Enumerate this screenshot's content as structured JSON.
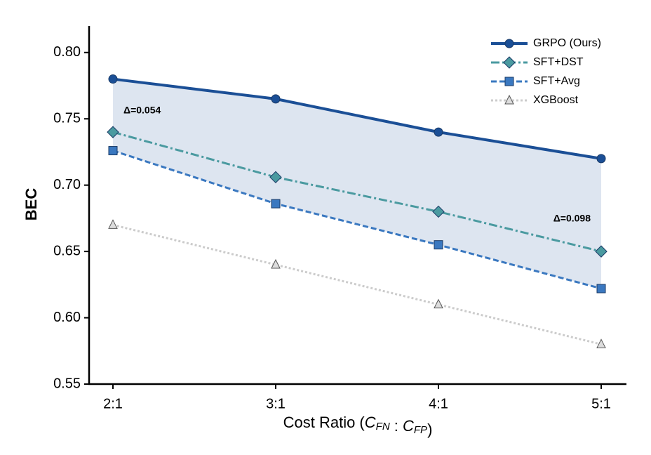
{
  "chart_data": {
    "type": "line",
    "x_label": "Cost Ratio (C_FN : C_FP)",
    "y_label": "BEC",
    "categories": [
      "2:1",
      "3:1",
      "4:1",
      "5:1"
    ],
    "ylim": [
      0.55,
      0.82
    ],
    "yticks": [
      0.55,
      {
        "value": 0.6,
        "label": "0.60"
      },
      0.65,
      {
        "value": 0.7,
        "label": "0.70"
      },
      0.75,
      {
        "value": 0.8,
        "label": "0.80"
      }
    ],
    "legend": "upper right",
    "shade": {
      "between": [
        "GRPO (Ours)",
        "SFT+Avg"
      ],
      "color": "#dde5f0"
    },
    "series": [
      {
        "name": "GRPO (Ours)",
        "color": "#1b4f96",
        "linestyle": "solid",
        "marker": "circle",
        "values": [
          0.78,
          0.765,
          0.74,
          0.72
        ]
      },
      {
        "name": "SFT+DST",
        "color": "#4a9aa0",
        "linestyle": "dashdot",
        "marker": "diamond",
        "values": [
          0.74,
          0.706,
          0.68,
          0.65
        ]
      },
      {
        "name": "SFT+Avg",
        "color": "#3a78c0",
        "linestyle": "dashed",
        "marker": "square",
        "values": [
          0.726,
          0.686,
          0.655,
          0.622
        ]
      },
      {
        "name": "XGBoost",
        "color": "#cccccc",
        "linestyle": "dotted",
        "marker": "triangle",
        "values": [
          0.67,
          0.64,
          0.61,
          0.58
        ]
      }
    ],
    "annotations": [
      {
        "text": "Δ=0.054",
        "color": "#1b4f96"
      },
      {
        "text": "Δ=0.098",
        "color": "#1b4f96"
      }
    ]
  }
}
